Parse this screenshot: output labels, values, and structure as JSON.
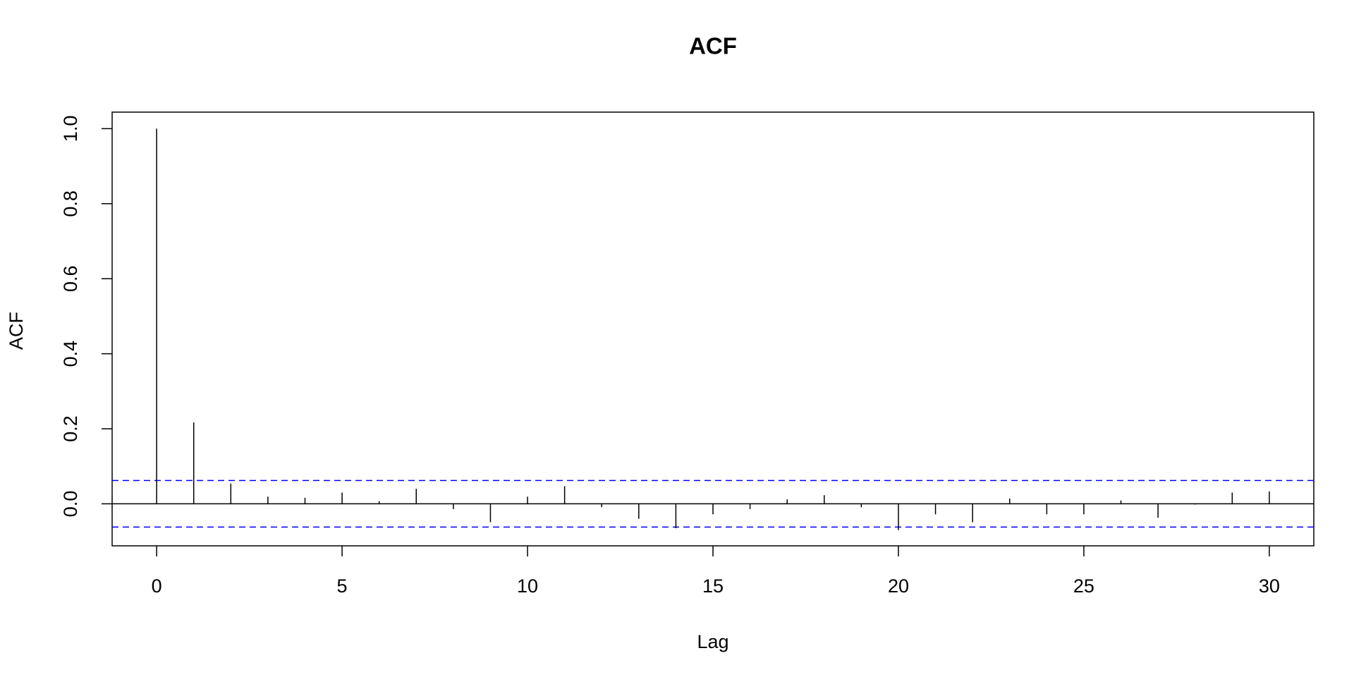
{
  "chart_data": {
    "type": "acf",
    "title": "ACF",
    "x_label": "Lag",
    "y_label": "ACF",
    "x": [
      0,
      1,
      2,
      3,
      4,
      5,
      6,
      7,
      8,
      9,
      10,
      11,
      12,
      13,
      14,
      15,
      16,
      17,
      18,
      19,
      20,
      21,
      22,
      23,
      24,
      25,
      26,
      27,
      28,
      29,
      30
    ],
    "values": [
      1.0,
      0.217,
      0.054,
      0.019,
      0.016,
      0.03,
      0.007,
      0.04,
      -0.014,
      -0.049,
      0.019,
      0.047,
      -0.009,
      -0.04,
      -0.065,
      -0.028,
      -0.014,
      0.012,
      0.023,
      -0.009,
      -0.07,
      -0.028,
      -0.049,
      0.014,
      -0.028,
      -0.028,
      0.009,
      -0.037,
      -0.002,
      0.03,
      0.033
    ],
    "color": "#000000",
    "ci_upper": 0.062,
    "ci_lower": -0.062,
    "ci_color": "#0000ff",
    "xlim": [
      -1.2,
      31.2
    ],
    "ylim": [
      -0.112,
      1.044
    ],
    "xticks": [
      0,
      5,
      10,
      15,
      20,
      25,
      30
    ],
    "yticks": [
      {
        "value": 0,
        "label": "0.0"
      },
      0.2,
      0.4,
      0.6,
      0.8,
      {
        "value": 1,
        "label": "1.0"
      }
    ]
  }
}
